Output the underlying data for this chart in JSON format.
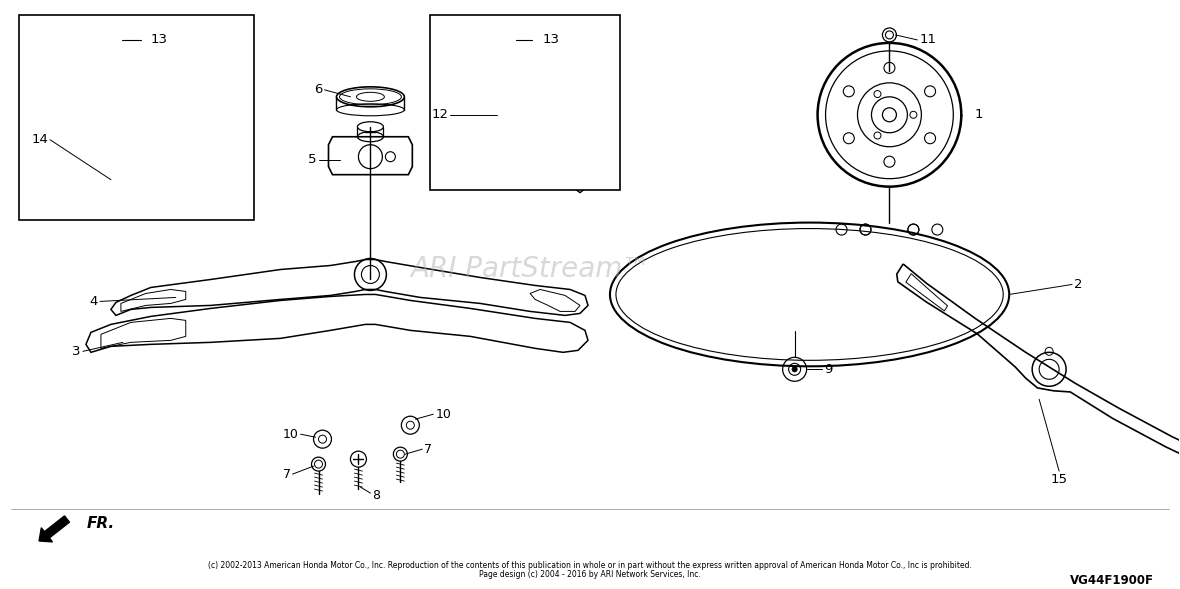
{
  "bg_color": "#ffffff",
  "copyright_line1": "(c) 2002-2013 American Honda Motor Co., Inc. Reproduction of the contents of this publication in whole or in part without the express written approval of American Honda Motor Co., Inc is prohibited.",
  "copyright_line2": "Page design (c) 2004 - 2016 by ARI Network Services, Inc.",
  "part_code": "VG44F1900F",
  "watermark": "ARI PartStream™",
  "fr_text": "FR."
}
